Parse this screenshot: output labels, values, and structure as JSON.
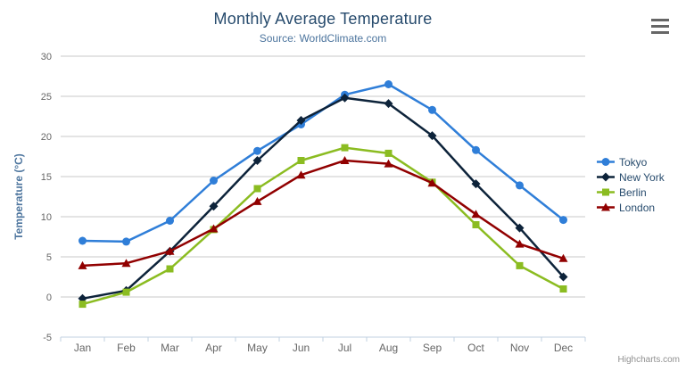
{
  "chart_data": {
    "type": "line",
    "title": "Monthly Average Temperature",
    "subtitle": "Source: WorldClimate.com",
    "xlabel": "",
    "ylabel": "Temperature (°C)",
    "ylim": [
      -5,
      30
    ],
    "yticks": [
      -5,
      0,
      5,
      10,
      15,
      20,
      25,
      30
    ],
    "grid": true,
    "legend_position": "right",
    "categories": [
      "Jan",
      "Feb",
      "Mar",
      "Apr",
      "May",
      "Jun",
      "Jul",
      "Aug",
      "Sep",
      "Oct",
      "Nov",
      "Dec"
    ],
    "series": [
      {
        "name": "Tokyo",
        "color": "#2f7ed8",
        "marker": "circle",
        "values": [
          7.0,
          6.9,
          9.5,
          14.5,
          18.2,
          21.5,
          25.2,
          26.5,
          23.3,
          18.3,
          13.9,
          9.6
        ]
      },
      {
        "name": "New York",
        "color": "#0d233a",
        "marker": "diamond",
        "values": [
          -0.2,
          0.8,
          5.7,
          11.3,
          17.0,
          22.0,
          24.8,
          24.1,
          20.1,
          14.1,
          8.6,
          2.5
        ]
      },
      {
        "name": "Berlin",
        "color": "#8bbc21",
        "marker": "square",
        "values": [
          -0.9,
          0.6,
          3.5,
          8.4,
          13.5,
          17.0,
          18.6,
          17.9,
          14.3,
          9.0,
          3.9,
          1.0
        ]
      },
      {
        "name": "London",
        "color": "#910000",
        "marker": "triangle",
        "values": [
          3.9,
          4.2,
          5.7,
          8.5,
          11.9,
          15.2,
          17.0,
          16.6,
          14.2,
          10.3,
          6.6,
          4.8
        ]
      }
    ]
  },
  "context_menu": {
    "icon": "hamburger"
  },
  "credits": "Highcharts.com",
  "colors": {
    "title": "#274b6d",
    "subtitle": "#4d759e",
    "axis_title": "#4d759e",
    "axis_labels": "#666666",
    "grid": "#c8c8c8",
    "axis_line": "#c0d0e0",
    "legend_text": "#274b6d",
    "credits": "#909090",
    "menu_icon": "#666666"
  }
}
